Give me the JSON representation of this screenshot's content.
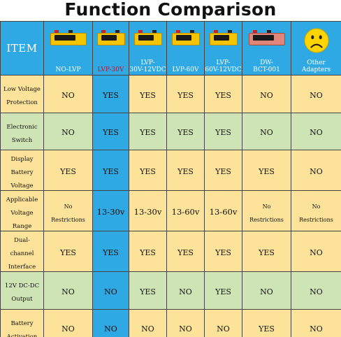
{
  "title": "Function Comparison",
  "header": {
    "item_label": "ITEM",
    "columns": [
      {
        "label": "NO-LVP",
        "icon": "battery-protector-icon",
        "highlight": false
      },
      {
        "label": "LVP-30V",
        "icon": "battery-protector-icon",
        "highlight": true
      },
      {
        "label": "LVP-\n30V-12VDC",
        "icon": "battery-protector-icon",
        "highlight": false
      },
      {
        "label": "LVP-60V",
        "icon": "battery-protector-icon",
        "highlight": false
      },
      {
        "label": "LVP-\n60V-12VDC",
        "icon": "battery-protector-icon",
        "highlight": false
      },
      {
        "label": "DW-\nBCT-001",
        "icon": "battery-protector-icon",
        "highlight": false
      },
      {
        "label": "Other\nAdapters",
        "icon": "sad-face-icon",
        "highlight": false
      }
    ]
  },
  "rows": [
    {
      "label": "Low Voltage\nProtection",
      "values": [
        "NO",
        "YES",
        "YES",
        "YES",
        "YES",
        "NO",
        "NO"
      ]
    },
    {
      "label": "Electronic\nSwitch",
      "values": [
        "NO",
        "YES",
        "YES",
        "YES",
        "YES",
        "NO",
        "NO"
      ]
    },
    {
      "label": "Display\nBattery\nVoltage",
      "values": [
        "YES",
        "YES",
        "YES",
        "YES",
        "YES",
        "YES",
        "NO"
      ]
    },
    {
      "label": "Applicable\nVoltage\nRange",
      "values": [
        "No\nRestrictions",
        "13-30v",
        "13-30v",
        "13-60v",
        "13-60v",
        "No\nRestrictions",
        "No\nRestrictions"
      ]
    },
    {
      "label": "Dual-\nchannel\nInterface",
      "values": [
        "YES",
        "YES",
        "YES",
        "YES",
        "YES",
        "YES",
        "NO"
      ]
    },
    {
      "label": "12V DC-DC\nOutput",
      "values": [
        "NO",
        "NO",
        "YES",
        "NO",
        "YES",
        "NO",
        "NO"
      ]
    },
    {
      "label": "Battery\nActivation",
      "values": [
        "NO",
        "NO",
        "NO",
        "NO",
        "NO",
        "YES",
        "NO"
      ]
    }
  ],
  "colors": {
    "header_blue": "#2fa9e4",
    "row_yellow": "#fde39a",
    "row_green": "#cfe4b4",
    "highlight_label_red": "#c8102e",
    "product_yellow": "#f5c400",
    "smiley_yellow": "#ffd400"
  }
}
